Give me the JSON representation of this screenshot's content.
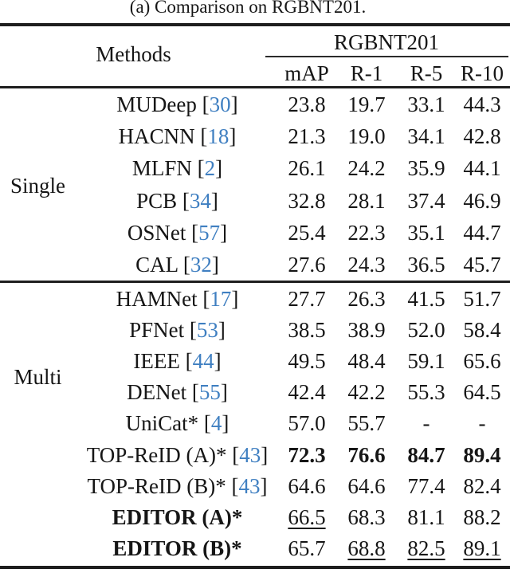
{
  "caption": "(a) Comparison on RGBNT201.",
  "colors": {
    "citation": "#3f7fc1",
    "text": "#161616",
    "rule": "#1e1e1e",
    "background": "#ffffff"
  },
  "header": {
    "methods": "Methods",
    "dataset": "RGBNT201",
    "subcolumns": [
      "mAP",
      "R-1",
      "R-5",
      "R-10"
    ]
  },
  "groups": [
    {
      "label": "Single",
      "rows": [
        {
          "method": "MUDeep",
          "cite": "30",
          "bold": false,
          "values": [
            {
              "t": "23.8"
            },
            {
              "t": "19.7"
            },
            {
              "t": "33.1"
            },
            {
              "t": "44.3"
            }
          ]
        },
        {
          "method": "HACNN",
          "cite": "18",
          "bold": false,
          "values": [
            {
              "t": "21.3"
            },
            {
              "t": "19.0"
            },
            {
              "t": "34.1"
            },
            {
              "t": "42.8"
            }
          ]
        },
        {
          "method": "MLFN",
          "cite": "2",
          "bold": false,
          "values": [
            {
              "t": "26.1"
            },
            {
              "t": "24.2"
            },
            {
              "t": "35.9"
            },
            {
              "t": "44.1"
            }
          ]
        },
        {
          "method": "PCB",
          "cite": "34",
          "bold": false,
          "values": [
            {
              "t": "32.8"
            },
            {
              "t": "28.1"
            },
            {
              "t": "37.4"
            },
            {
              "t": "46.9"
            }
          ]
        },
        {
          "method": "OSNet",
          "cite": "57",
          "bold": false,
          "values": [
            {
              "t": "25.4"
            },
            {
              "t": "22.3"
            },
            {
              "t": "35.1"
            },
            {
              "t": "44.7"
            }
          ]
        },
        {
          "method": "CAL",
          "cite": "32",
          "bold": false,
          "values": [
            {
              "t": "27.6"
            },
            {
              "t": "24.3"
            },
            {
              "t": "36.5"
            },
            {
              "t": "45.7"
            }
          ]
        }
      ]
    },
    {
      "label": "Multi",
      "rows": [
        {
          "method": "HAMNet",
          "cite": "17",
          "bold": false,
          "values": [
            {
              "t": "27.7"
            },
            {
              "t": "26.3"
            },
            {
              "t": "41.5"
            },
            {
              "t": "51.7"
            }
          ]
        },
        {
          "method": "PFNet",
          "cite": "53",
          "bold": false,
          "values": [
            {
              "t": "38.5"
            },
            {
              "t": "38.9"
            },
            {
              "t": "52.0"
            },
            {
              "t": "58.4"
            }
          ]
        },
        {
          "method": "IEEE",
          "cite": "44",
          "bold": false,
          "values": [
            {
              "t": "49.5"
            },
            {
              "t": "48.4"
            },
            {
              "t": "59.1"
            },
            {
              "t": "65.6"
            }
          ]
        },
        {
          "method": "DENet",
          "cite": "55",
          "bold": false,
          "values": [
            {
              "t": "42.4"
            },
            {
              "t": "42.2"
            },
            {
              "t": "55.3"
            },
            {
              "t": "64.5"
            }
          ]
        },
        {
          "method": "UniCat*",
          "cite": "4",
          "bold": false,
          "values": [
            {
              "t": "57.0"
            },
            {
              "t": "55.7"
            },
            {
              "t": "-"
            },
            {
              "t": "-"
            }
          ]
        },
        {
          "method": "TOP-ReID (A)*",
          "cite": "43",
          "bold": false,
          "values": [
            {
              "t": "72.3",
              "b": true
            },
            {
              "t": "76.6",
              "b": true
            },
            {
              "t": "84.7",
              "b": true
            },
            {
              "t": "89.4",
              "b": true
            }
          ]
        },
        {
          "method": "TOP-ReID (B)*",
          "cite": "43",
          "bold": false,
          "values": [
            {
              "t": "64.6"
            },
            {
              "t": "64.6"
            },
            {
              "t": "77.4"
            },
            {
              "t": "82.4"
            }
          ]
        },
        {
          "method": "EDITOR (A)*",
          "cite": null,
          "bold": true,
          "values": [
            {
              "t": "66.5",
              "u": true
            },
            {
              "t": "68.3"
            },
            {
              "t": "81.1"
            },
            {
              "t": "88.2"
            }
          ]
        },
        {
          "method": "EDITOR (B)*",
          "cite": null,
          "bold": true,
          "values": [
            {
              "t": "65.7"
            },
            {
              "t": "68.8",
              "u": true
            },
            {
              "t": "82.5",
              "u": true
            },
            {
              "t": "89.1",
              "u": true
            }
          ]
        }
      ]
    }
  ]
}
